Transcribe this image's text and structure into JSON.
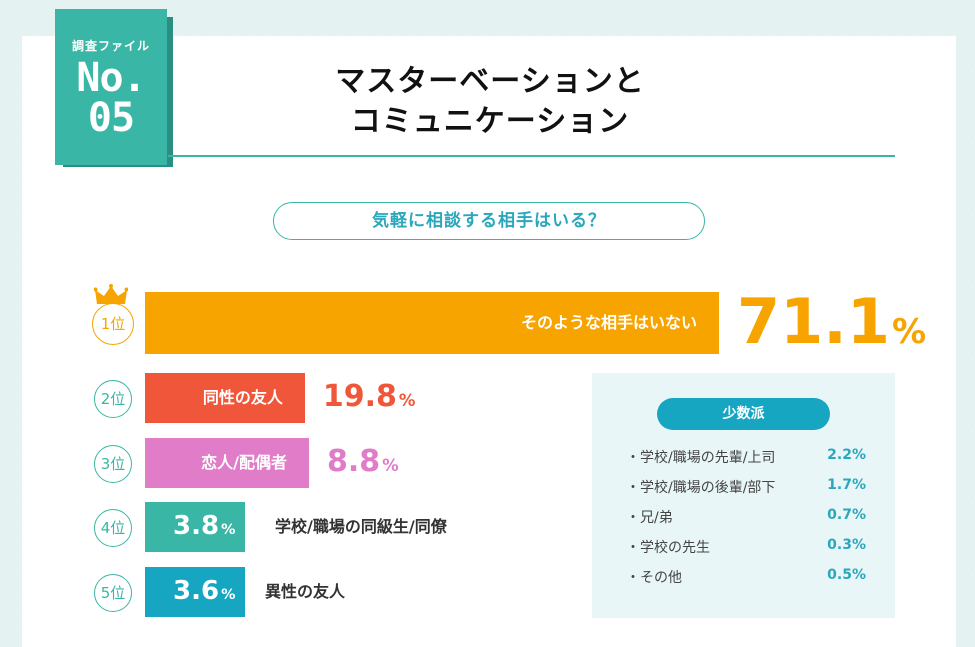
{
  "badge": {
    "label": "調査ファイル",
    "number": "No.\n05"
  },
  "title": "マスターベーションと\nコミュニケーション",
  "question": "気軽に相談する相手はいる？",
  "colors": {
    "rank1": "#f7a400",
    "rank2": "#f0573a",
    "rank3": "#e07cc8",
    "rank4": "#39b6a5",
    "rank5": "#17a6c1",
    "accent": "#39b6a5"
  },
  "chart_data": {
    "type": "bar",
    "title": "気軽に相談する相手はいる？",
    "unit": "%",
    "categories": [
      "そのような相手はいない",
      "同性の友人",
      "恋人/配偶者",
      "学校/職場の同級生/同僚",
      "異性の友人"
    ],
    "ranks": [
      "1位",
      "2位",
      "3位",
      "4位",
      "5位"
    ],
    "values": [
      71.1,
      19.8,
      8.8,
      3.8,
      3.6
    ]
  },
  "minority": {
    "title": "少数派",
    "items": [
      {
        "label": "・学校/職場の先輩/上司",
        "value": "2.2%"
      },
      {
        "label": "・学校/職場の後輩/部下",
        "value": "1.7%"
      },
      {
        "label": "・兄/弟",
        "value": "0.7%"
      },
      {
        "label": "・学校の先生",
        "value": "0.3%"
      },
      {
        "label": "・その他",
        "value": "0.5%"
      }
    ]
  }
}
